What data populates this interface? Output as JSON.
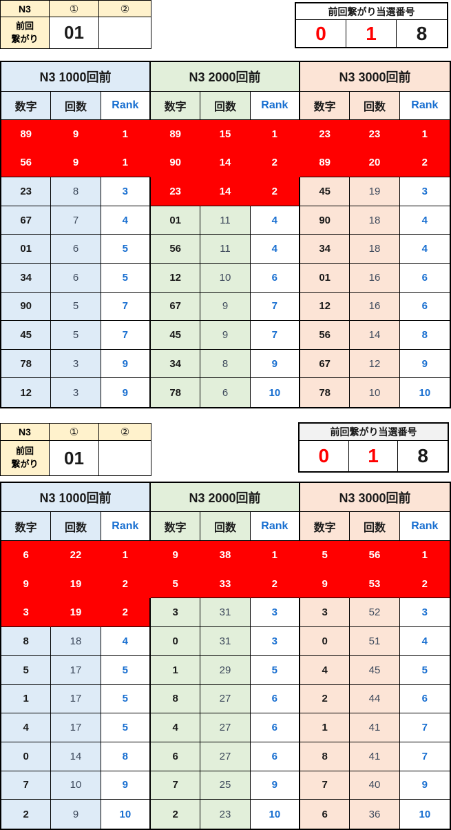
{
  "colors": {
    "hot_row_red": "#FF0000",
    "red_digit": "#FF0000",
    "rank_blue": "#176ED0",
    "section_blue": "#DEEBF7",
    "section_green": "#E2EFDA",
    "section_peach": "#FCE4D6",
    "header_yellow": "#FFF2CC"
  },
  "blocks": [
    {
      "connect": {
        "corner": "N3",
        "col1": "①",
        "col2": "②",
        "row_label_line1": "前回",
        "row_label_line2": "繋がり",
        "value1": "01",
        "value2": ""
      },
      "winning": {
        "title": "前回繋がり当選番号",
        "header_bg": "#FFFFFF",
        "digits": [
          "0",
          "1",
          "8"
        ],
        "digit_colors": [
          "red",
          "red",
          "black"
        ]
      },
      "freq": {
        "sections": [
          {
            "title": "N3 1000回前",
            "theme": "blue",
            "columns": [
              "数字",
              "回数",
              "Rank"
            ],
            "hot_rows": 2,
            "rows": [
              [
                "89",
                "9",
                "1"
              ],
              [
                "56",
                "9",
                "1"
              ],
              [
                "23",
                "8",
                "3"
              ],
              [
                "67",
                "7",
                "4"
              ],
              [
                "01",
                "6",
                "5"
              ],
              [
                "34",
                "6",
                "5"
              ],
              [
                "90",
                "5",
                "7"
              ],
              [
                "45",
                "5",
                "7"
              ],
              [
                "78",
                "3",
                "9"
              ],
              [
                "12",
                "3",
                "9"
              ]
            ]
          },
          {
            "title": "N3 2000回前",
            "theme": "green",
            "columns": [
              "数字",
              "回数",
              "Rank"
            ],
            "hot_rows": 3,
            "rows": [
              [
                "89",
                "15",
                "1"
              ],
              [
                "90",
                "14",
                "2"
              ],
              [
                "23",
                "14",
                "2"
              ],
              [
                "01",
                "11",
                "4"
              ],
              [
                "56",
                "11",
                "4"
              ],
              [
                "12",
                "10",
                "6"
              ],
              [
                "67",
                "9",
                "7"
              ],
              [
                "45",
                "9",
                "7"
              ],
              [
                "34",
                "8",
                "9"
              ],
              [
                "78",
                "6",
                "10"
              ]
            ]
          },
          {
            "title": "N3 3000回前",
            "theme": "peach",
            "columns": [
              "数字",
              "回数",
              "Rank"
            ],
            "hot_rows": 2,
            "rows": [
              [
                "23",
                "23",
                "1"
              ],
              [
                "89",
                "20",
                "2"
              ],
              [
                "45",
                "19",
                "3"
              ],
              [
                "90",
                "18",
                "4"
              ],
              [
                "34",
                "18",
                "4"
              ],
              [
                "01",
                "16",
                "6"
              ],
              [
                "12",
                "16",
                "6"
              ],
              [
                "56",
                "14",
                "8"
              ],
              [
                "67",
                "12",
                "9"
              ],
              [
                "78",
                "10",
                "10"
              ]
            ]
          }
        ]
      }
    },
    {
      "connect": {
        "corner": "N3",
        "col1": "①",
        "col2": "②",
        "row_label_line1": "前回",
        "row_label_line2": "繋がり",
        "value1": "01",
        "value2": ""
      },
      "winning": {
        "title": "前回繋がり当選番号",
        "header_bg": "#F2F2F2",
        "digits": [
          "0",
          "1",
          "8"
        ],
        "digit_colors": [
          "red",
          "red",
          "black"
        ]
      },
      "freq": {
        "sections": [
          {
            "title": "N3 1000回前",
            "theme": "blue",
            "columns": [
              "数字",
              "回数",
              "Rank"
            ],
            "hot_rows": 3,
            "rows": [
              [
                "6",
                "22",
                "1"
              ],
              [
                "9",
                "19",
                "2"
              ],
              [
                "3",
                "19",
                "2"
              ],
              [
                "8",
                "18",
                "4"
              ],
              [
                "5",
                "17",
                "5"
              ],
              [
                "1",
                "17",
                "5"
              ],
              [
                "4",
                "17",
                "5"
              ],
              [
                "0",
                "14",
                "8"
              ],
              [
                "7",
                "10",
                "9"
              ],
              [
                "2",
                "9",
                "10"
              ]
            ]
          },
          {
            "title": "N3 2000回前",
            "theme": "green",
            "columns": [
              "数字",
              "回数",
              "Rank"
            ],
            "hot_rows": 2,
            "rows": [
              [
                "9",
                "38",
                "1"
              ],
              [
                "5",
                "33",
                "2"
              ],
              [
                "3",
                "31",
                "3"
              ],
              [
                "0",
                "31",
                "3"
              ],
              [
                "1",
                "29",
                "5"
              ],
              [
                "8",
                "27",
                "6"
              ],
              [
                "4",
                "27",
                "6"
              ],
              [
                "6",
                "27",
                "6"
              ],
              [
                "7",
                "25",
                "9"
              ],
              [
                "2",
                "23",
                "10"
              ]
            ]
          },
          {
            "title": "N3 3000回前",
            "theme": "peach",
            "columns": [
              "数字",
              "回数",
              "Rank"
            ],
            "hot_rows": 2,
            "rows": [
              [
                "5",
                "56",
                "1"
              ],
              [
                "9",
                "53",
                "2"
              ],
              [
                "3",
                "52",
                "3"
              ],
              [
                "0",
                "51",
                "4"
              ],
              [
                "4",
                "45",
                "5"
              ],
              [
                "2",
                "44",
                "6"
              ],
              [
                "1",
                "41",
                "7"
              ],
              [
                "8",
                "41",
                "7"
              ],
              [
                "7",
                "40",
                "9"
              ],
              [
                "6",
                "36",
                "10"
              ]
            ]
          }
        ]
      }
    }
  ]
}
